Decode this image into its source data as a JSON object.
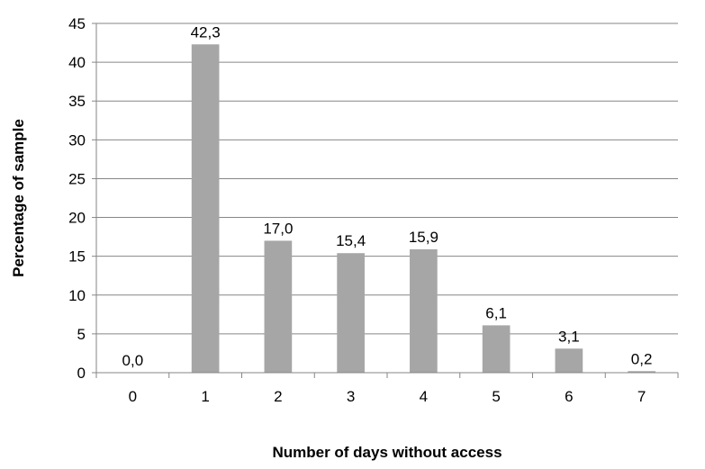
{
  "chart_data": {
    "type": "bar",
    "categories": [
      "0",
      "1",
      "2",
      "3",
      "4",
      "5",
      "6",
      "7"
    ],
    "values": [
      0.0,
      42.3,
      17.0,
      15.4,
      15.9,
      6.1,
      3.1,
      0.2
    ],
    "data_labels": [
      "0,0",
      "42,3",
      "17,0",
      "15,4",
      "15,9",
      "6,1",
      "3,1",
      "0,2"
    ],
    "title": "",
    "xlabel": "Number of days without access",
    "ylabel": "Percentage of sample",
    "ylim": [
      0,
      45
    ],
    "yticks": [
      0,
      5,
      10,
      15,
      20,
      25,
      30,
      35,
      40,
      45
    ],
    "ytick_labels": [
      "0",
      "5",
      "10",
      "15",
      "20",
      "25",
      "30",
      "35",
      "40",
      "45"
    ],
    "grid": true,
    "legend": "none",
    "bar_color": "#a6a6a6",
    "grid_color": "#868686"
  }
}
